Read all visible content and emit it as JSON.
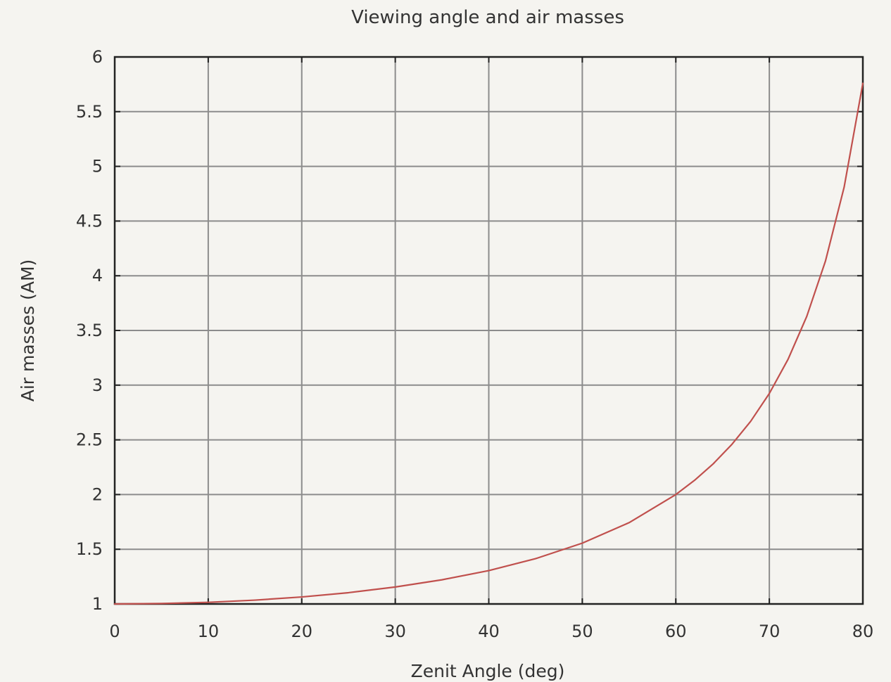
{
  "chart_data": {
    "type": "line",
    "title": "Viewing angle and air masses",
    "xlabel": "Zenit Angle (deg)",
    "ylabel": "Air masses (AM)",
    "xlim": [
      0,
      80
    ],
    "ylim": [
      1,
      6
    ],
    "x_ticks": [
      "0",
      "10",
      "20",
      "30",
      "40",
      "50",
      "60",
      "70",
      "80"
    ],
    "y_ticks": [
      "1",
      "1.5",
      "2",
      "2.5",
      "3",
      "3.5",
      "4",
      "4.5",
      "5",
      "5.5",
      "6"
    ],
    "grid": true,
    "legend": "none",
    "series": [
      {
        "color": "#c0504d",
        "x": [
          0,
          5,
          10,
          15,
          20,
          25,
          30,
          35,
          40,
          45,
          50,
          55,
          60,
          62,
          64,
          66,
          68,
          70,
          72,
          74,
          76,
          78,
          80
        ],
        "y": [
          1.0,
          1.004,
          1.015,
          1.035,
          1.064,
          1.103,
          1.155,
          1.221,
          1.305,
          1.414,
          1.556,
          1.743,
          2.0,
          2.13,
          2.281,
          2.459,
          2.669,
          2.924,
          3.236,
          3.628,
          4.134,
          4.81,
          5.759
        ]
      }
    ]
  }
}
